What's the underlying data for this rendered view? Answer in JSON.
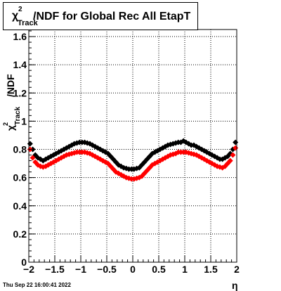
{
  "title": {
    "chi": "χ",
    "sup": "2",
    "sub": "Track",
    "main": "/NDF for Global Rec All EtapT"
  },
  "ylabel": {
    "chi": "χ",
    "sup": "2",
    "sub": "Track",
    "rest": "/NDF"
  },
  "xlabel": "η",
  "timestamp": "Thu Sep 22 16:00:41 2022",
  "colors": {
    "series_black": "#000000",
    "series_red": "#ff0000"
  },
  "chart_data": {
    "type": "scatter",
    "xlim": [
      -2,
      2
    ],
    "ylim": [
      0,
      1.65
    ],
    "grid": true,
    "xticks": [
      "−2",
      "−1.5",
      "−1",
      "−0.5",
      "0",
      "0.5",
      "1",
      "1.5",
      "2"
    ],
    "yticks": [
      "0",
      "0.2",
      "0.4",
      "0.6",
      "0.8",
      "1",
      "1.2",
      "1.4",
      "1.6"
    ],
    "series": [
      {
        "color": "#000000",
        "x": [
          -1.975,
          -1.925,
          -1.875,
          -1.825,
          -1.775,
          -1.725,
          -1.675,
          -1.625,
          -1.575,
          -1.525,
          -1.475,
          -1.425,
          -1.375,
          -1.325,
          -1.275,
          -1.225,
          -1.175,
          -1.125,
          -1.075,
          -1.025,
          -0.975,
          -0.925,
          -0.875,
          -0.825,
          -0.775,
          -0.725,
          -0.675,
          -0.625,
          -0.575,
          -0.525,
          -0.475,
          -0.425,
          -0.375,
          -0.325,
          -0.275,
          -0.225,
          -0.175,
          -0.125,
          -0.075,
          -0.025,
          0.025,
          0.075,
          0.125,
          0.175,
          0.225,
          0.275,
          0.325,
          0.375,
          0.425,
          0.475,
          0.525,
          0.575,
          0.625,
          0.675,
          0.725,
          0.775,
          0.825,
          0.875,
          0.925,
          0.975,
          1.025,
          1.075,
          1.125,
          1.175,
          1.225,
          1.275,
          1.325,
          1.375,
          1.425,
          1.475,
          1.525,
          1.575,
          1.625,
          1.675,
          1.725,
          1.775,
          1.825,
          1.875,
          1.925,
          1.975
        ],
        "y": [
          0.84,
          0.8,
          0.76,
          0.74,
          0.73,
          0.72,
          0.73,
          0.74,
          0.75,
          0.76,
          0.77,
          0.78,
          0.79,
          0.8,
          0.81,
          0.82,
          0.83,
          0.84,
          0.845,
          0.85,
          0.85,
          0.85,
          0.845,
          0.84,
          0.83,
          0.82,
          0.81,
          0.8,
          0.79,
          0.78,
          0.77,
          0.75,
          0.73,
          0.71,
          0.69,
          0.68,
          0.67,
          0.665,
          0.66,
          0.66,
          0.66,
          0.665,
          0.67,
          0.69,
          0.71,
          0.73,
          0.75,
          0.77,
          0.78,
          0.79,
          0.8,
          0.81,
          0.82,
          0.83,
          0.835,
          0.84,
          0.845,
          0.85,
          0.85,
          0.86,
          0.85,
          0.84,
          0.83,
          0.83,
          0.82,
          0.81,
          0.8,
          0.79,
          0.78,
          0.77,
          0.76,
          0.75,
          0.74,
          0.73,
          0.73,
          0.74,
          0.75,
          0.77,
          0.8,
          0.85
        ]
      },
      {
        "color": "#ff0000",
        "x": [
          -1.975,
          -1.925,
          -1.875,
          -1.825,
          -1.775,
          -1.725,
          -1.675,
          -1.625,
          -1.575,
          -1.525,
          -1.475,
          -1.425,
          -1.375,
          -1.325,
          -1.275,
          -1.225,
          -1.175,
          -1.125,
          -1.075,
          -1.025,
          -0.975,
          -0.925,
          -0.875,
          -0.825,
          -0.775,
          -0.725,
          -0.675,
          -0.625,
          -0.575,
          -0.525,
          -0.475,
          -0.425,
          -0.375,
          -0.325,
          -0.275,
          -0.225,
          -0.175,
          -0.125,
          -0.075,
          -0.025,
          0.025,
          0.075,
          0.125,
          0.175,
          0.225,
          0.275,
          0.325,
          0.375,
          0.425,
          0.475,
          0.525,
          0.575,
          0.625,
          0.675,
          0.725,
          0.775,
          0.825,
          0.875,
          0.925,
          0.975,
          1.025,
          1.075,
          1.125,
          1.175,
          1.225,
          1.275,
          1.325,
          1.375,
          1.425,
          1.475,
          1.525,
          1.575,
          1.625,
          1.675,
          1.725,
          1.775,
          1.825,
          1.875,
          1.925,
          1.975
        ],
        "y": [
          0.8,
          0.74,
          0.71,
          0.69,
          0.68,
          0.675,
          0.68,
          0.69,
          0.7,
          0.71,
          0.72,
          0.73,
          0.74,
          0.75,
          0.76,
          0.765,
          0.77,
          0.775,
          0.78,
          0.78,
          0.78,
          0.78,
          0.775,
          0.77,
          0.76,
          0.75,
          0.74,
          0.73,
          0.72,
          0.71,
          0.7,
          0.68,
          0.66,
          0.64,
          0.63,
          0.62,
          0.61,
          0.6,
          0.595,
          0.59,
          0.59,
          0.595,
          0.6,
          0.61,
          0.63,
          0.65,
          0.67,
          0.69,
          0.7,
          0.71,
          0.72,
          0.73,
          0.74,
          0.75,
          0.76,
          0.765,
          0.77,
          0.78,
          0.78,
          0.78,
          0.78,
          0.775,
          0.77,
          0.765,
          0.76,
          0.75,
          0.74,
          0.73,
          0.72,
          0.71,
          0.7,
          0.69,
          0.68,
          0.675,
          0.67,
          0.68,
          0.7,
          0.72,
          0.76,
          0.81
        ]
      }
    ]
  }
}
